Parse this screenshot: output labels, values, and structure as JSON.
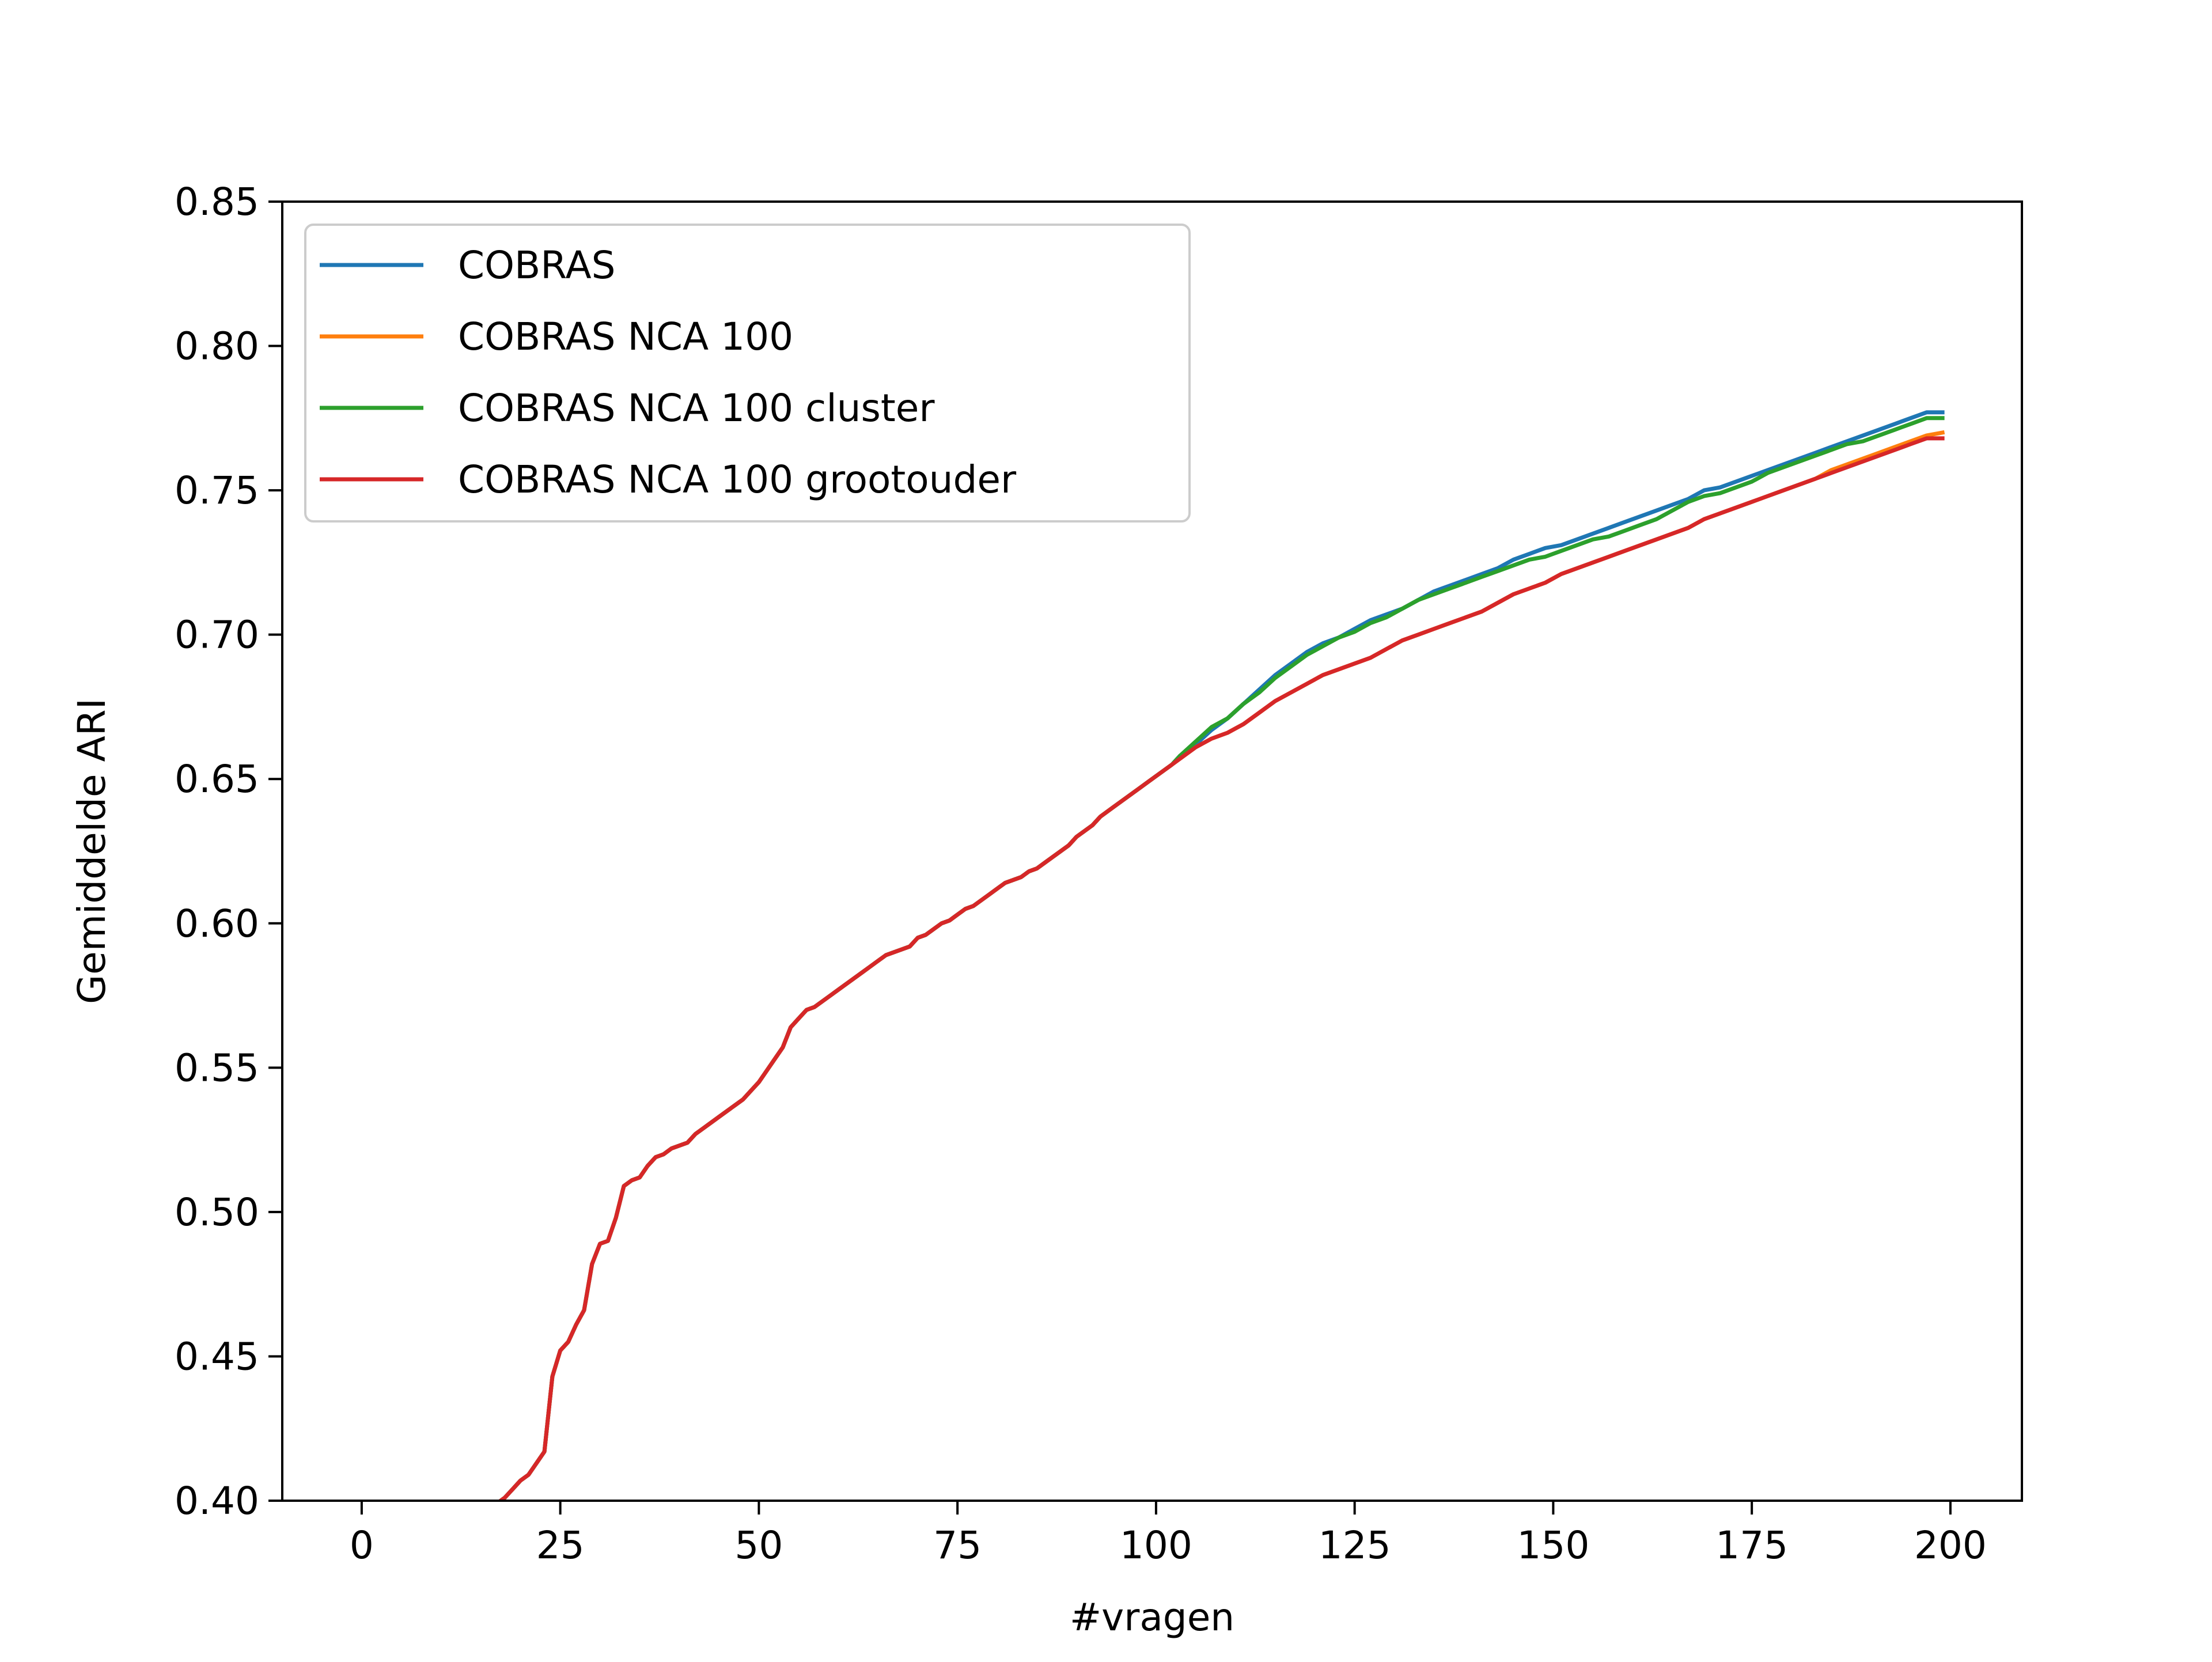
{
  "chart_data": {
    "type": "line",
    "title": "",
    "xlabel": "#vragen",
    "ylabel": "Gemiddelde ARI",
    "xlim": [
      -10,
      209
    ],
    "ylim": [
      0.4,
      0.85
    ],
    "xticks": [
      0,
      25,
      50,
      75,
      100,
      125,
      150,
      175,
      200
    ],
    "yticks": [
      0.4,
      0.45,
      0.5,
      0.55,
      0.6,
      0.65,
      0.7,
      0.75,
      0.8,
      0.85
    ],
    "xtick_labels": [
      "0",
      "25",
      "50",
      "75",
      "100",
      "125",
      "150",
      "175",
      "200"
    ],
    "ytick_labels": [
      "0.40",
      "0.45",
      "0.50",
      "0.55",
      "0.60",
      "0.65",
      "0.70",
      "0.75",
      "0.80",
      "0.85"
    ],
    "grid": false,
    "legend_position": "top-left",
    "shared_points": [
      [
        17.5,
        0.4
      ],
      [
        18,
        0.401
      ],
      [
        19,
        0.404
      ],
      [
        20,
        0.407
      ],
      [
        21,
        0.409
      ],
      [
        22,
        0.413
      ],
      [
        23,
        0.417
      ],
      [
        24,
        0.443
      ],
      [
        25,
        0.452
      ],
      [
        26,
        0.455
      ],
      [
        27,
        0.461
      ],
      [
        28,
        0.466
      ],
      [
        29,
        0.482
      ],
      [
        30,
        0.489
      ],
      [
        31,
        0.49
      ],
      [
        32,
        0.498
      ],
      [
        33,
        0.509
      ],
      [
        34,
        0.511
      ],
      [
        35,
        0.512
      ],
      [
        36,
        0.516
      ],
      [
        37,
        0.519
      ],
      [
        38,
        0.52
      ],
      [
        39,
        0.522
      ],
      [
        40,
        0.523
      ],
      [
        41,
        0.524
      ],
      [
        42,
        0.527
      ],
      [
        43,
        0.529
      ],
      [
        44,
        0.531
      ],
      [
        45,
        0.533
      ],
      [
        46,
        0.535
      ],
      [
        47,
        0.537
      ],
      [
        48,
        0.539
      ],
      [
        49,
        0.542
      ],
      [
        50,
        0.545
      ],
      [
        51,
        0.549
      ],
      [
        52,
        0.553
      ],
      [
        53,
        0.557
      ],
      [
        54,
        0.564
      ],
      [
        55,
        0.567
      ],
      [
        56,
        0.57
      ],
      [
        57,
        0.571
      ],
      [
        58,
        0.573
      ],
      [
        59,
        0.575
      ],
      [
        60,
        0.577
      ],
      [
        61,
        0.579
      ],
      [
        62,
        0.581
      ],
      [
        63,
        0.583
      ],
      [
        64,
        0.585
      ],
      [
        65,
        0.587
      ],
      [
        66,
        0.589
      ],
      [
        67,
        0.59
      ],
      [
        68,
        0.591
      ],
      [
        69,
        0.592
      ],
      [
        70,
        0.595
      ],
      [
        71,
        0.596
      ],
      [
        72,
        0.598
      ],
      [
        73,
        0.6
      ],
      [
        74,
        0.601
      ],
      [
        75,
        0.603
      ],
      [
        76,
        0.605
      ],
      [
        77,
        0.606
      ],
      [
        78,
        0.608
      ],
      [
        79,
        0.61
      ],
      [
        80,
        0.612
      ],
      [
        81,
        0.614
      ],
      [
        82,
        0.615
      ],
      [
        83,
        0.616
      ],
      [
        84,
        0.618
      ],
      [
        85,
        0.619
      ],
      [
        86,
        0.621
      ],
      [
        87,
        0.623
      ],
      [
        88,
        0.625
      ],
      [
        89,
        0.627
      ],
      [
        90,
        0.63
      ],
      [
        91,
        0.632
      ],
      [
        92,
        0.634
      ],
      [
        93,
        0.637
      ],
      [
        94,
        0.639
      ],
      [
        95,
        0.641
      ],
      [
        96,
        0.643
      ],
      [
        97,
        0.645
      ],
      [
        98,
        0.647
      ],
      [
        99,
        0.649
      ],
      [
        100,
        0.651
      ],
      [
        101,
        0.653
      ],
      [
        102,
        0.655
      ]
    ],
    "series": [
      {
        "name": "COBRAS",
        "color": "#1f77b4",
        "tail": [
          [
            103,
            0.658
          ],
          [
            105,
            0.662
          ],
          [
            107,
            0.667
          ],
          [
            109,
            0.671
          ],
          [
            111,
            0.676
          ],
          [
            113,
            0.681
          ],
          [
            115,
            0.686
          ],
          [
            117,
            0.69
          ],
          [
            119,
            0.694
          ],
          [
            121,
            0.697
          ],
          [
            123,
            0.699
          ],
          [
            125,
            0.702
          ],
          [
            127,
            0.705
          ],
          [
            129,
            0.707
          ],
          [
            131,
            0.709
          ],
          [
            133,
            0.712
          ],
          [
            135,
            0.715
          ],
          [
            137,
            0.717
          ],
          [
            139,
            0.719
          ],
          [
            141,
            0.721
          ],
          [
            143,
            0.723
          ],
          [
            145,
            0.726
          ],
          [
            147,
            0.728
          ],
          [
            149,
            0.73
          ],
          [
            151,
            0.731
          ],
          [
            153,
            0.733
          ],
          [
            155,
            0.735
          ],
          [
            157,
            0.737
          ],
          [
            159,
            0.739
          ],
          [
            161,
            0.741
          ],
          [
            163,
            0.743
          ],
          [
            165,
            0.745
          ],
          [
            167,
            0.747
          ],
          [
            169,
            0.75
          ],
          [
            171,
            0.751
          ],
          [
            173,
            0.753
          ],
          [
            175,
            0.755
          ],
          [
            177,
            0.757
          ],
          [
            179,
            0.759
          ],
          [
            181,
            0.761
          ],
          [
            183,
            0.763
          ],
          [
            185,
            0.765
          ],
          [
            187,
            0.767
          ],
          [
            189,
            0.769
          ],
          [
            191,
            0.771
          ],
          [
            193,
            0.773
          ],
          [
            195,
            0.775
          ],
          [
            197,
            0.777
          ],
          [
            199,
            0.777
          ]
        ]
      },
      {
        "name": "COBRAS NCA 100",
        "color": "#ff7f0e",
        "tail": [
          [
            103,
            0.657
          ],
          [
            105,
            0.661
          ],
          [
            107,
            0.664
          ],
          [
            109,
            0.666
          ],
          [
            111,
            0.669
          ],
          [
            113,
            0.673
          ],
          [
            115,
            0.677
          ],
          [
            117,
            0.68
          ],
          [
            119,
            0.683
          ],
          [
            121,
            0.686
          ],
          [
            123,
            0.688
          ],
          [
            125,
            0.69
          ],
          [
            127,
            0.692
          ],
          [
            129,
            0.695
          ],
          [
            131,
            0.698
          ],
          [
            133,
            0.7
          ],
          [
            135,
            0.702
          ],
          [
            137,
            0.704
          ],
          [
            139,
            0.706
          ],
          [
            141,
            0.708
          ],
          [
            143,
            0.711
          ],
          [
            145,
            0.714
          ],
          [
            147,
            0.716
          ],
          [
            149,
            0.718
          ],
          [
            151,
            0.721
          ],
          [
            153,
            0.723
          ],
          [
            155,
            0.725
          ],
          [
            157,
            0.727
          ],
          [
            159,
            0.729
          ],
          [
            161,
            0.731
          ],
          [
            163,
            0.733
          ],
          [
            165,
            0.735
          ],
          [
            167,
            0.737
          ],
          [
            169,
            0.74
          ],
          [
            171,
            0.742
          ],
          [
            173,
            0.744
          ],
          [
            175,
            0.746
          ],
          [
            177,
            0.748
          ],
          [
            179,
            0.75
          ],
          [
            181,
            0.752
          ],
          [
            183,
            0.754
          ],
          [
            185,
            0.757
          ],
          [
            187,
            0.759
          ],
          [
            189,
            0.761
          ],
          [
            191,
            0.763
          ],
          [
            193,
            0.765
          ],
          [
            195,
            0.767
          ],
          [
            197,
            0.769
          ],
          [
            199,
            0.77
          ]
        ]
      },
      {
        "name": "COBRAS NCA 100 cluster",
        "color": "#2ca02c",
        "tail": [
          [
            103,
            0.658
          ],
          [
            105,
            0.663
          ],
          [
            107,
            0.668
          ],
          [
            109,
            0.671
          ],
          [
            111,
            0.676
          ],
          [
            113,
            0.68
          ],
          [
            115,
            0.685
          ],
          [
            117,
            0.689
          ],
          [
            119,
            0.693
          ],
          [
            121,
            0.696
          ],
          [
            123,
            0.699
          ],
          [
            125,
            0.701
          ],
          [
            127,
            0.704
          ],
          [
            129,
            0.706
          ],
          [
            131,
            0.709
          ],
          [
            133,
            0.712
          ],
          [
            135,
            0.714
          ],
          [
            137,
            0.716
          ],
          [
            139,
            0.718
          ],
          [
            141,
            0.72
          ],
          [
            143,
            0.722
          ],
          [
            145,
            0.724
          ],
          [
            147,
            0.726
          ],
          [
            149,
            0.727
          ],
          [
            151,
            0.729
          ],
          [
            153,
            0.731
          ],
          [
            155,
            0.733
          ],
          [
            157,
            0.734
          ],
          [
            159,
            0.736
          ],
          [
            161,
            0.738
          ],
          [
            163,
            0.74
          ],
          [
            165,
            0.743
          ],
          [
            167,
            0.746
          ],
          [
            169,
            0.748
          ],
          [
            171,
            0.749
          ],
          [
            173,
            0.751
          ],
          [
            175,
            0.753
          ],
          [
            177,
            0.756
          ],
          [
            179,
            0.758
          ],
          [
            181,
            0.76
          ],
          [
            183,
            0.762
          ],
          [
            185,
            0.764
          ],
          [
            187,
            0.766
          ],
          [
            189,
            0.767
          ],
          [
            191,
            0.769
          ],
          [
            193,
            0.771
          ],
          [
            195,
            0.773
          ],
          [
            197,
            0.775
          ],
          [
            199,
            0.775
          ]
        ]
      },
      {
        "name": "COBRAS NCA 100 grootouder",
        "color": "#d62728",
        "tail": [
          [
            103,
            0.657
          ],
          [
            105,
            0.661
          ],
          [
            107,
            0.664
          ],
          [
            109,
            0.666
          ],
          [
            111,
            0.669
          ],
          [
            113,
            0.673
          ],
          [
            115,
            0.677
          ],
          [
            117,
            0.68
          ],
          [
            119,
            0.683
          ],
          [
            121,
            0.686
          ],
          [
            123,
            0.688
          ],
          [
            125,
            0.69
          ],
          [
            127,
            0.692
          ],
          [
            129,
            0.695
          ],
          [
            131,
            0.698
          ],
          [
            133,
            0.7
          ],
          [
            135,
            0.702
          ],
          [
            137,
            0.704
          ],
          [
            139,
            0.706
          ],
          [
            141,
            0.708
          ],
          [
            143,
            0.711
          ],
          [
            145,
            0.714
          ],
          [
            147,
            0.716
          ],
          [
            149,
            0.718
          ],
          [
            151,
            0.721
          ],
          [
            153,
            0.723
          ],
          [
            155,
            0.725
          ],
          [
            157,
            0.727
          ],
          [
            159,
            0.729
          ],
          [
            161,
            0.731
          ],
          [
            163,
            0.733
          ],
          [
            165,
            0.735
          ],
          [
            167,
            0.737
          ],
          [
            169,
            0.74
          ],
          [
            171,
            0.742
          ],
          [
            173,
            0.744
          ],
          [
            175,
            0.746
          ],
          [
            177,
            0.748
          ],
          [
            179,
            0.75
          ],
          [
            181,
            0.752
          ],
          [
            183,
            0.754
          ],
          [
            185,
            0.756
          ],
          [
            187,
            0.758
          ],
          [
            189,
            0.76
          ],
          [
            191,
            0.762
          ],
          [
            193,
            0.764
          ],
          [
            195,
            0.766
          ],
          [
            197,
            0.768
          ],
          [
            199,
            0.768
          ]
        ]
      }
    ]
  }
}
